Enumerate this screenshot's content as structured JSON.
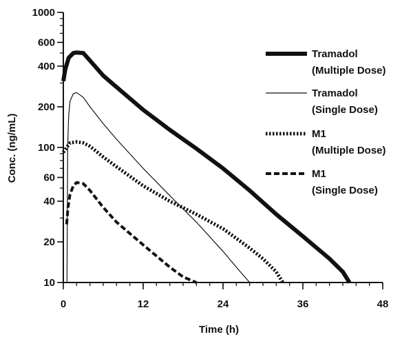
{
  "chart_data": {
    "type": "line",
    "title": "",
    "xlabel": "Time (h)",
    "ylabel": "Conc. (ng/mL)",
    "xlim": [
      0,
      48
    ],
    "ylim": [
      10,
      1000
    ],
    "yscale": "log",
    "x_ticks": [
      0,
      12,
      24,
      36,
      48
    ],
    "x_tick_labels": [
      "0",
      "12",
      "24",
      "36",
      "48"
    ],
    "y_ticks": [
      10,
      20,
      40,
      60,
      100,
      200,
      400,
      600,
      1000
    ],
    "y_tick_labels": [
      "10",
      "20",
      "40",
      "60",
      "100",
      "200",
      "400",
      "600",
      "1000"
    ],
    "grid": false,
    "legend_position": "top-right",
    "series": [
      {
        "name_line1": "Tramadol",
        "name_line2": "(Multiple Dose)",
        "style": "thick-solid",
        "color": "#111111",
        "x": [
          0,
          0.3,
          0.8,
          1.5,
          2,
          3,
          4,
          6,
          8,
          12,
          16,
          20,
          24,
          28,
          32,
          36,
          40,
          42,
          43
        ],
        "y": [
          310,
          380,
          460,
          500,
          505,
          500,
          440,
          340,
          280,
          190,
          135,
          98,
          70,
          48,
          32,
          22,
          15,
          12,
          10
        ]
      },
      {
        "name_line1": "Tramadol",
        "name_line2": "(Single Dose)",
        "style": "thin-solid",
        "color": "#111111",
        "x": [
          0.55,
          0.65,
          0.8,
          1.0,
          1.5,
          2,
          3,
          4,
          6,
          8,
          12,
          16,
          20,
          24,
          26,
          28
        ],
        "y": [
          10,
          100,
          170,
          220,
          250,
          255,
          235,
          200,
          150,
          115,
          70,
          44,
          28,
          17,
          13,
          10
        ]
      },
      {
        "name_line1": "M1",
        "name_line2": "(Multiple Dose)",
        "style": "dotted",
        "color": "#111111",
        "x": [
          0,
          0.5,
          1,
          2,
          3,
          4,
          6,
          8,
          12,
          16,
          20,
          24,
          28,
          30,
          32,
          33
        ],
        "y": [
          92,
          100,
          108,
          110,
          108,
          102,
          85,
          72,
          52,
          40,
          32,
          25,
          18,
          15,
          12,
          10
        ]
      },
      {
        "name_line1": "M1",
        "name_line2": "(Single Dose)",
        "style": "dashed",
        "color": "#111111",
        "x": [
          0.5,
          0.7,
          1,
          1.5,
          2,
          3,
          4,
          6,
          8,
          12,
          16,
          18,
          20
        ],
        "y": [
          27,
          36,
          45,
          52,
          55,
          54,
          48,
          36,
          28,
          19,
          13,
          11,
          10
        ]
      }
    ]
  }
}
